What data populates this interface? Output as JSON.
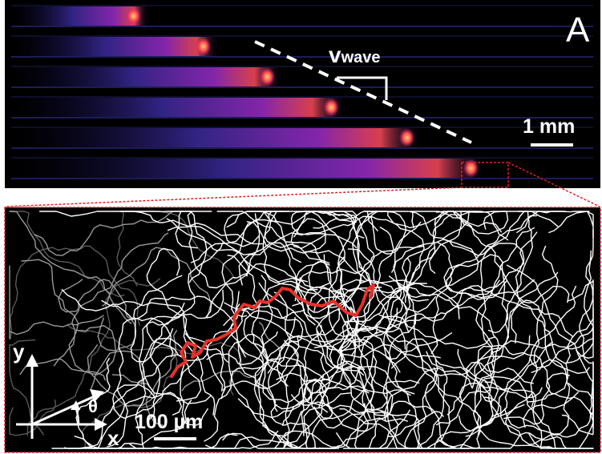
{
  "panel_label": "A",
  "wave_velocity_label": "v",
  "wave_velocity_subscript": "wave",
  "scale_bar_top": "1 mm",
  "scale_bar_bottom": "100 µm",
  "axis_y_label": "y",
  "axis_x_label": "x",
  "angle_label": "θ",
  "colors": {
    "background": "#000000",
    "highlight_track": "#e8302a",
    "tracks": "#ffffff",
    "zoom_box": "#e02020",
    "wave_core": "#ff5a4a"
  },
  "channels": [
    {
      "wave_position": 0.21
    },
    {
      "wave_position": 0.33
    },
    {
      "wave_position": 0.44
    },
    {
      "wave_position": 0.55
    },
    {
      "wave_position": 0.68
    },
    {
      "wave_position": 0.79
    }
  ]
}
